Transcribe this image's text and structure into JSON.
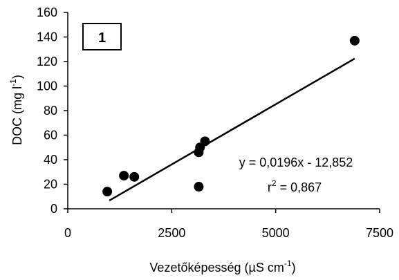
{
  "chart_data": {
    "type": "scatter",
    "panel_label": "1",
    "xlabel": "Vezetőképesség (µS cm",
    "xlabel_sup": "-1",
    "xlabel_end": ")",
    "ylabel": "DOC (mg l",
    "ylabel_sup": "-1",
    "ylabel_end": ")",
    "xlim": [
      0,
      7500
    ],
    "ylim": [
      0,
      160
    ],
    "x_ticks": [
      "0",
      "2500",
      "5000",
      "7500"
    ],
    "y_ticks": [
      "0",
      "20",
      "40",
      "60",
      "80",
      "100",
      "120",
      "140",
      "160"
    ],
    "grid": false,
    "points": [
      {
        "x": 950,
        "y": 14
      },
      {
        "x": 1350,
        "y": 27
      },
      {
        "x": 1600,
        "y": 26
      },
      {
        "x": 3150,
        "y": 18
      },
      {
        "x": 3150,
        "y": 46
      },
      {
        "x": 3180,
        "y": 50
      },
      {
        "x": 3300,
        "y": 55
      },
      {
        "x": 6900,
        "y": 137
      }
    ],
    "regression": {
      "slope": 0.0196,
      "intercept": -12.852,
      "x_range": [
        1000,
        6900
      ],
      "equation_label": "y = 0,0196x - 12,852",
      "r2_prefix": "r",
      "r2_sup": "2",
      "r2_value": " = 0,867"
    },
    "colors": {
      "marker": "#000000",
      "line": "#000000",
      "axis": "#000000",
      "background": "#ffffff"
    }
  }
}
